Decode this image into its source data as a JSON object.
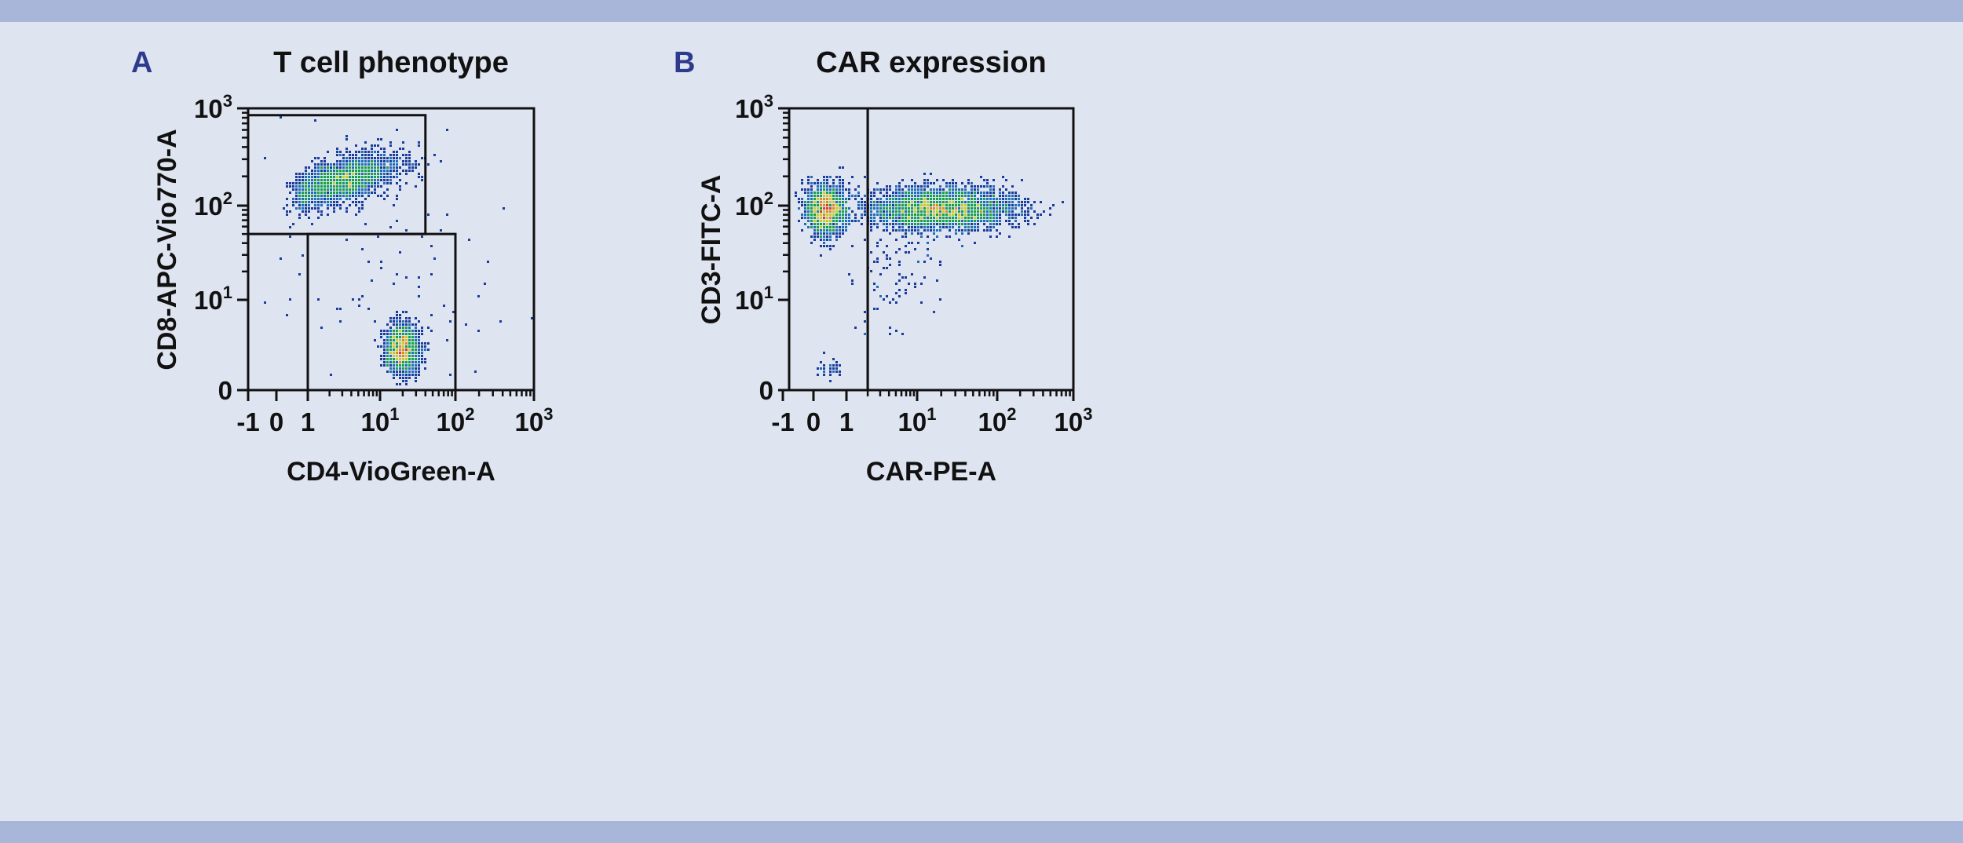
{
  "colors": {
    "background": "#dfe4f1",
    "band": "#a8b6da",
    "panel_letter": "#2e3a8c",
    "density": [
      "#1a3c9c",
      "#1f6fb8",
      "#17a04c",
      "#cbc928",
      "#e08a1a",
      "#e0401a"
    ]
  },
  "chart_data": [
    {
      "type": "scatter",
      "subtype": "flow-cytometry density dot plot",
      "panel_letter": "A",
      "title": "T cell phenotype",
      "xlabel": "CD4-VioGreen-A",
      "ylabel": "CD8-APC-Vio770-A",
      "x_scale": "biexponential",
      "y_scale": "biexponential",
      "xlim": [
        -1,
        1000
      ],
      "ylim": [
        0,
        1000
      ],
      "x_ticks": [
        {
          "v": -1,
          "label": "-1"
        },
        {
          "v": 0,
          "label": "0"
        },
        {
          "v": 1,
          "label": "1"
        },
        {
          "v": 10,
          "label": "10",
          "sup": "1"
        },
        {
          "v": 100,
          "label": "10",
          "sup": "2"
        },
        {
          "v": 1000,
          "label": "10",
          "sup": "3"
        }
      ],
      "y_ticks": [
        {
          "v": 0,
          "label": "0"
        },
        {
          "v": 10,
          "label": "10",
          "sup": "1"
        },
        {
          "v": 100,
          "label": "10",
          "sup": "2"
        },
        {
          "v": 1000,
          "label": "10",
          "sup": "3"
        }
      ],
      "gates": [
        {
          "x": [
            -1,
            40
          ],
          "y": [
            50,
            850
          ]
        },
        {
          "x": [
            1,
            100
          ],
          "y": [
            0,
            50
          ]
        }
      ],
      "populations": [
        {
          "x": 3,
          "y": 180,
          "sx_decades": 0.38,
          "sy_decades": 0.13,
          "corr": 0.55,
          "n": 2600
        },
        {
          "x": 20,
          "y": 4.5,
          "sx_decades": 0.11,
          "sy_decades": 0.13,
          "corr": 0,
          "n": 1800
        },
        {
          "x": 8,
          "y": 30,
          "sx_decades": 0.9,
          "sy_decades": 0.7,
          "corr": 0,
          "n": 110
        }
      ]
    },
    {
      "type": "scatter",
      "subtype": "flow-cytometry density dot plot",
      "panel_letter": "B",
      "title": "CAR expression",
      "xlabel": "CAR-PE-A",
      "ylabel": "CD3-FITC-A",
      "x_scale": "biexponential",
      "y_scale": "biexponential",
      "xlim": [
        -1,
        1000
      ],
      "ylim": [
        0,
        1000
      ],
      "x_ticks": [
        {
          "v": -1,
          "label": "-1"
        },
        {
          "v": 0,
          "label": "0"
        },
        {
          "v": 1,
          "label": "1"
        },
        {
          "v": 10,
          "label": "10",
          "sup": "1"
        },
        {
          "v": 100,
          "label": "10",
          "sup": "2"
        },
        {
          "v": 1000,
          "label": "10",
          "sup": "3"
        }
      ],
      "y_ticks": [
        {
          "v": 0,
          "label": "0"
        },
        {
          "v": 10,
          "label": "10",
          "sup": "1"
        },
        {
          "v": 100,
          "label": "10",
          "sup": "2"
        },
        {
          "v": 1000,
          "label": "10",
          "sup": "3"
        }
      ],
      "gates": [
        {
          "x": [
            -1,
            2
          ],
          "y": [
            0,
            1000
          ]
        },
        {
          "x": [
            2,
            1000
          ],
          "y": [
            0,
            1000
          ]
        }
      ],
      "populations": [
        {
          "x": 0.4,
          "y": 90,
          "sx_decades": 0.3,
          "sy_decades": 0.13,
          "corr": 0,
          "n": 1700
        },
        {
          "x": 20,
          "y": 92,
          "sx_decades": 0.45,
          "sy_decades": 0.11,
          "corr": 0,
          "n": 3200
        },
        {
          "x": 5,
          "y": 20,
          "sx_decades": 0.35,
          "sy_decades": 0.3,
          "corr": 0,
          "n": 90
        },
        {
          "x": 0.5,
          "y": 2.5,
          "sx_decades": 0.2,
          "sy_decades": 0.06,
          "corr": 0,
          "n": 30
        }
      ]
    }
  ]
}
